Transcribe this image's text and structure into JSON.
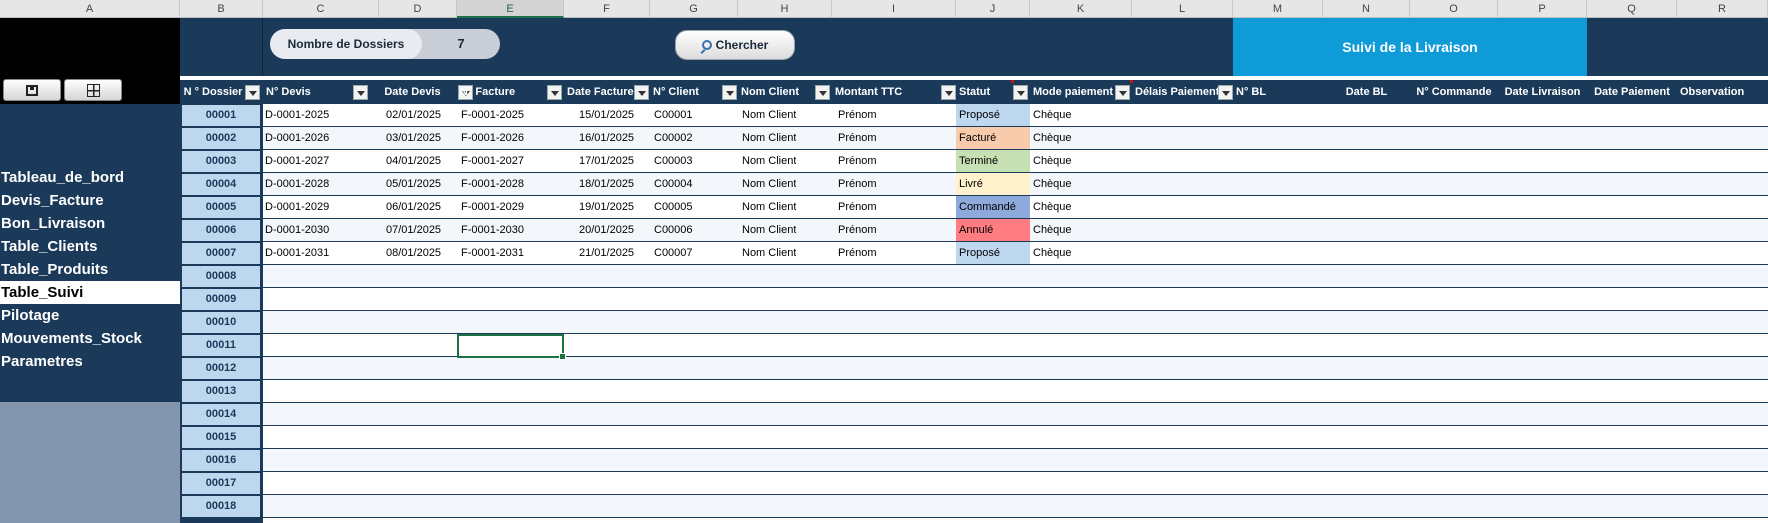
{
  "columns": [
    "A",
    "B",
    "C",
    "D",
    "E",
    "F",
    "G",
    "H",
    "I",
    "J",
    "K",
    "L",
    "M",
    "N",
    "O",
    "P",
    "Q",
    "R"
  ],
  "banner": {
    "count_label": "Nombre de Dossiers",
    "count_value": "7",
    "search_label": "Chercher",
    "tracking_title": "Suivi de la Livraison"
  },
  "nav": {
    "items": [
      "Tableau_de_bord",
      "Devis_Facture",
      "Bon_Livraison",
      "Table_Clients",
      "Table_Produits",
      "Table_Suivi",
      "Pilotage",
      "Mouvements_Stock",
      "Parametres"
    ],
    "active": "Table_Suivi"
  },
  "headers": {
    "dossier": "N ° Dossier",
    "devis": "N° Devis",
    "date_devis": "Date Devis",
    "facture": "N° Facture",
    "date_facture": "Date Facture",
    "client": "N° Client",
    "nom_client": "Nom Client",
    "montant": "Montant TTC",
    "statut": "Statut",
    "mode_paiement": "Mode paiement",
    "delais": "Délais Paiement",
    "bl": "N° BL",
    "date_bl": "Date BL",
    "commande": "N° Commande",
    "date_livraison": "Date Livraison",
    "date_paiement": "Date Paiement",
    "observation": "Observation"
  },
  "rows": [
    {
      "dossier": "00001",
      "devis": "D-0001-2025",
      "date_devis": "02/01/2025",
      "facture": "F-0001-2025",
      "date_facture": "15/01/2025",
      "client": "C00001",
      "nom": "Nom Client",
      "montant": "Prénom",
      "statut": "Proposé",
      "mode": "Chèque"
    },
    {
      "dossier": "00002",
      "devis": "D-0001-2026",
      "date_devis": "03/01/2025",
      "facture": "F-0001-2026",
      "date_facture": "16/01/2025",
      "client": "C00002",
      "nom": "Nom Client",
      "montant": "Prénom",
      "statut": "Facturé",
      "mode": "Chèque"
    },
    {
      "dossier": "00003",
      "devis": "D-0001-2027",
      "date_devis": "04/01/2025",
      "facture": "F-0001-2027",
      "date_facture": "17/01/2025",
      "client": "C00003",
      "nom": "Nom Client",
      "montant": "Prénom",
      "statut": "Terminé",
      "mode": "Chèque"
    },
    {
      "dossier": "00004",
      "devis": "D-0001-2028",
      "date_devis": "05/01/2025",
      "facture": "F-0001-2028",
      "date_facture": "18/01/2025",
      "client": "C00004",
      "nom": "Nom Client",
      "montant": "Prénom",
      "statut": "Livré",
      "mode": "Chèque"
    },
    {
      "dossier": "00005",
      "devis": "D-0001-2029",
      "date_devis": "06/01/2025",
      "facture": "F-0001-2029",
      "date_facture": "19/01/2025",
      "client": "C00005",
      "nom": "Nom Client",
      "montant": "Prénom",
      "statut": "Commandé",
      "mode": "Chèque"
    },
    {
      "dossier": "00006",
      "devis": "D-0001-2030",
      "date_devis": "07/01/2025",
      "facture": "F-0001-2030",
      "date_facture": "20/01/2025",
      "client": "C00006",
      "nom": "Nom Client",
      "montant": "Prénom",
      "statut": "Annulé",
      "mode": "Chèque"
    },
    {
      "dossier": "00007",
      "devis": "D-0001-2031",
      "date_devis": "08/01/2025",
      "facture": "F-0001-2031",
      "date_facture": "21/01/2025",
      "client": "C00007",
      "nom": "Nom Client",
      "montant": "Prénom",
      "statut": "Proposé",
      "mode": "Chèque"
    }
  ],
  "empty_rows": [
    "00008",
    "00009",
    "00010",
    "00011",
    "00012",
    "00013",
    "00014",
    "00015",
    "00016",
    "00017",
    "00018"
  ],
  "status_colors": {
    "Proposé": "#bdd7ee",
    "Facturé": "#f8cbad",
    "Terminé": "#c6e0b4",
    "Livré": "#fff2cc",
    "Commandé": "#8ea9db",
    "Annulé": "#ff7c80"
  },
  "icons": [
    "save-icon",
    "grid-icon",
    "search-icon",
    "dropdown-arrow-icon"
  ]
}
